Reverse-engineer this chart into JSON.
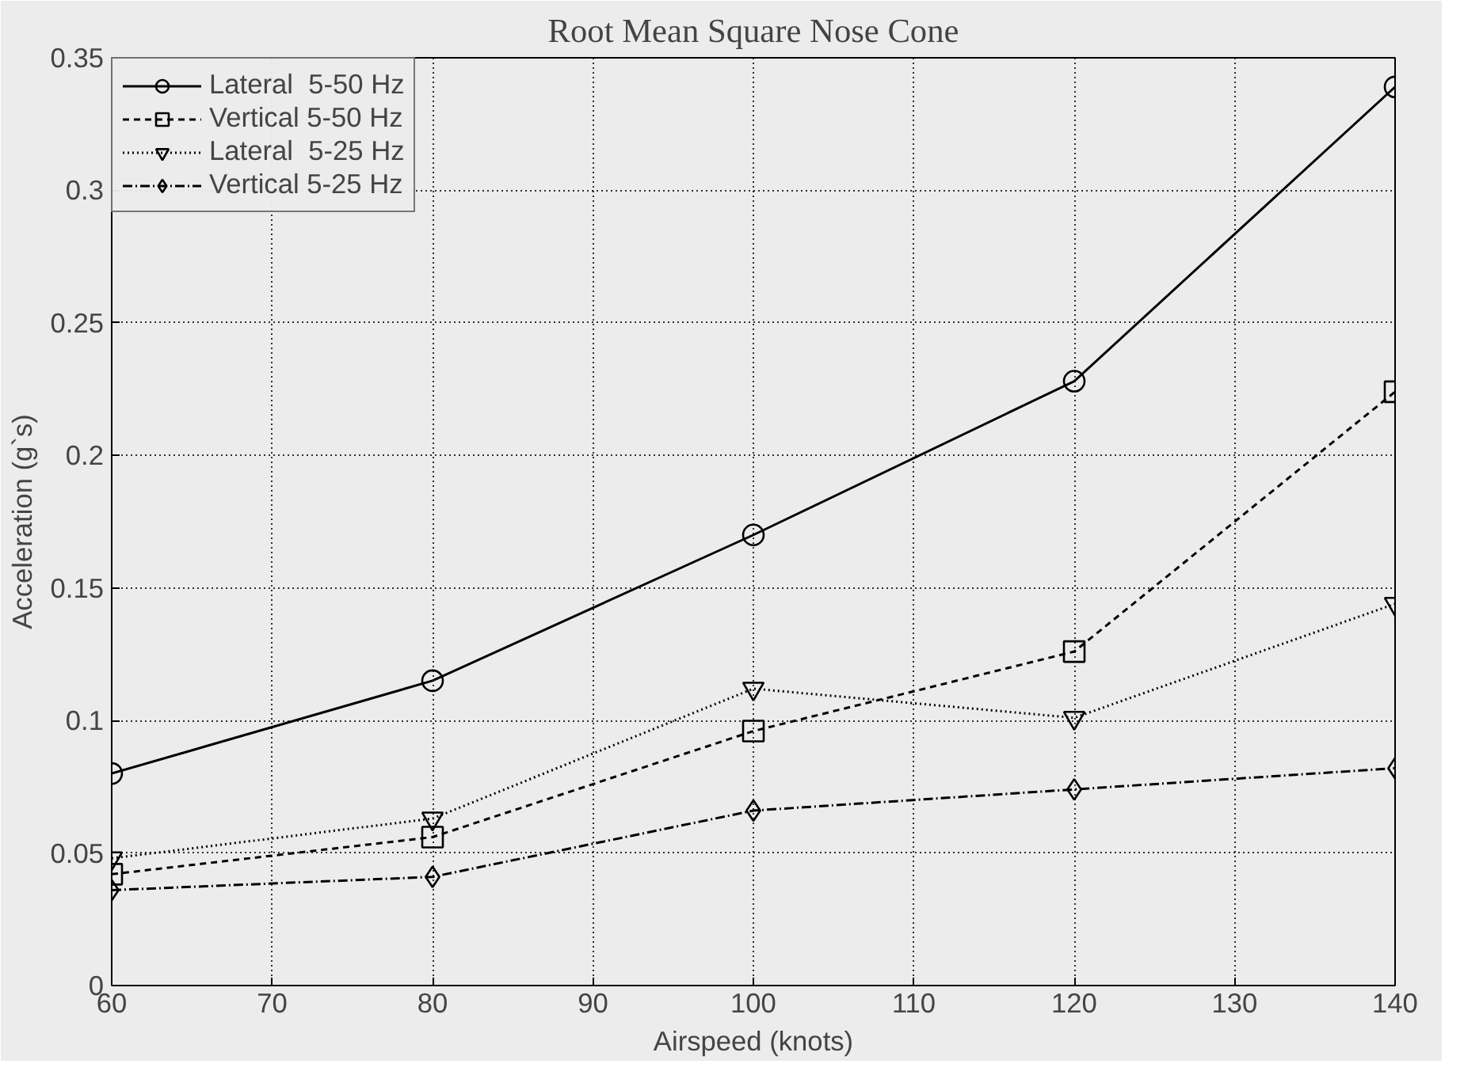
{
  "chart_data": {
    "type": "line",
    "title": "Root Mean Square Nose Cone",
    "xlabel": "Airspeed (knots)",
    "ylabel": "Acceleration (g`s)",
    "x": [
      60,
      80,
      100,
      120,
      140
    ],
    "xlim": [
      60,
      140
    ],
    "xticks": [
      60,
      70,
      80,
      90,
      100,
      110,
      120,
      130,
      140
    ],
    "ylim": [
      0,
      0.35
    ],
    "yticks": [
      0,
      0.05,
      0.1,
      0.15,
      0.2,
      0.25,
      0.3,
      0.35
    ],
    "grid": true,
    "legend": "top left",
    "series": [
      {
        "name": "Lateral  5-50 Hz",
        "color": "#000000",
        "marker": "circle",
        "line_style": "solid",
        "values": [
          0.08,
          0.115,
          0.17,
          0.228,
          0.339
        ]
      },
      {
        "name": "Vertical 5-50 Hz",
        "color": "#000000",
        "marker": "square",
        "line_style": "dashed",
        "values": [
          0.042,
          0.056,
          0.096,
          0.126,
          0.224
        ]
      },
      {
        "name": "Lateral  5-25 Hz",
        "color": "#000000",
        "marker": "triangle",
        "line_style": "dotted",
        "values": [
          0.048,
          0.063,
          0.112,
          0.101,
          0.144
        ]
      },
      {
        "name": "Vertical 5-25 Hz",
        "color": "#000000",
        "marker": "diamond",
        "line_style": "dashdot",
        "values": [
          0.036,
          0.041,
          0.066,
          0.074,
          0.082
        ]
      }
    ]
  }
}
